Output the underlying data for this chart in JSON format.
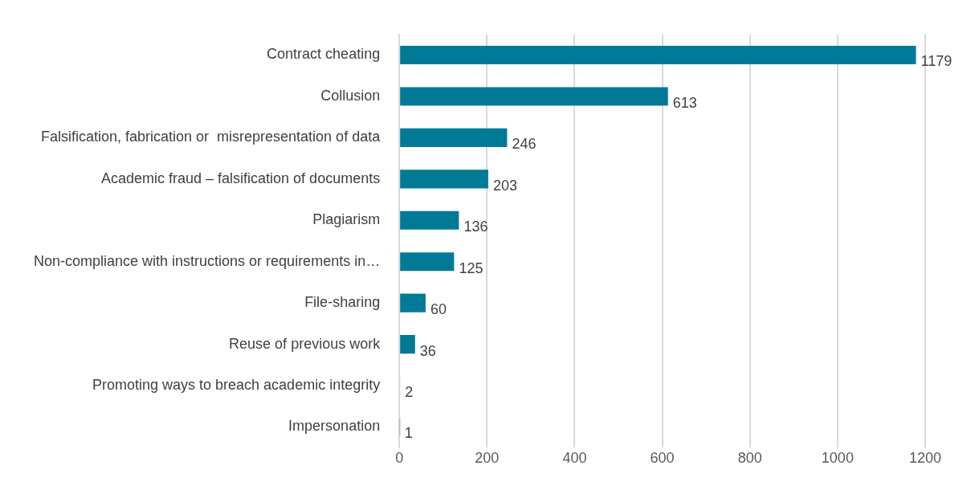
{
  "chart_data": {
    "type": "bar",
    "orientation": "horizontal",
    "categories": [
      "Contract cheating",
      "Collusion",
      "Falsification, fabrication or  misrepresentation of data",
      "Academic fraud – falsification of documents",
      "Plagiarism",
      "Non-compliance with instructions or requirements in…",
      "File-sharing",
      "Reuse of previous work",
      "Promoting ways to breach academic integrity",
      "Impersonation"
    ],
    "values": [
      1179,
      613,
      246,
      203,
      136,
      125,
      60,
      36,
      2,
      1
    ],
    "color": "#007a96",
    "xlim": [
      0,
      1200
    ],
    "xticks": [
      0,
      200,
      400,
      600,
      800,
      1000,
      1200
    ],
    "grid": "x",
    "data_labels": true,
    "legend": false
  }
}
